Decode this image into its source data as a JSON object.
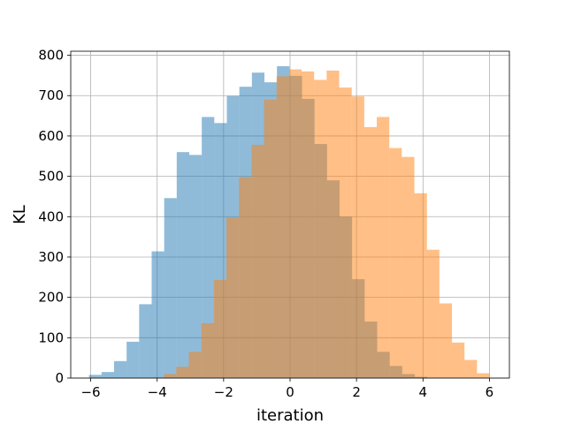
{
  "chart_data": {
    "type": "bar",
    "subtype": "histogram",
    "title": "",
    "xlabel": "iteration",
    "ylabel": "KL",
    "xlim": [
      -6.6,
      6.6
    ],
    "ylim": [
      0,
      810
    ],
    "grid": true,
    "legend": "none",
    "x_ticks": [
      -6,
      -4,
      -2,
      0,
      2,
      4,
      6
    ],
    "x_tick_labels": [
      "−6",
      "−4",
      "−2",
      "0",
      "2",
      "4",
      "6"
    ],
    "y_ticks": [
      0,
      100,
      200,
      300,
      400,
      500,
      600,
      700,
      800
    ],
    "y_tick_labels": [
      "0",
      "100",
      "200",
      "300",
      "400",
      "500",
      "600",
      "700",
      "800"
    ],
    "series": [
      {
        "color": "#1f77b4",
        "alpha": 0.5,
        "bin_start": -6.05,
        "bin_width": 0.377,
        "counts": [
          8,
          15,
          42,
          90,
          183,
          314,
          446,
          560,
          553,
          647,
          632,
          699,
          722,
          757,
          733,
          773,
          749,
          692,
          580,
          490,
          400,
          245,
          140,
          65,
          30,
          10,
          3
        ]
      },
      {
        "color": "#ff7f0e",
        "alpha": 0.5,
        "bin_start": -3.8,
        "bin_width": 0.377,
        "counts": [
          10,
          28,
          65,
          136,
          243,
          398,
          498,
          578,
          690,
          748,
          765,
          760,
          739,
          762,
          720,
          698,
          622,
          647,
          570,
          548,
          458,
          318,
          185,
          88,
          45,
          12
        ]
      }
    ]
  }
}
